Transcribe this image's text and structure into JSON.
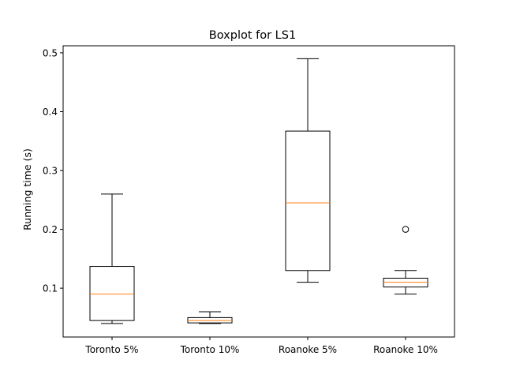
{
  "chart_data": {
    "type": "boxplot",
    "title": "Boxplot for LS1",
    "xlabel": "",
    "ylabel": "Running time (s)",
    "ylim": [
      0.017,
      0.512
    ],
    "yticks": [
      0.1,
      0.2,
      0.3,
      0.4,
      0.5
    ],
    "ytick_labels": [
      "0.1",
      "0.2",
      "0.3",
      "0.4",
      "0.5"
    ],
    "categories": [
      "Toronto 5%",
      "Toronto 10%",
      "Roanoke 5%",
      "Roanoke 10%"
    ],
    "boxes": [
      {
        "whisker_low": 0.04,
        "q1": 0.045,
        "median": 0.09,
        "q3": 0.137,
        "whisker_high": 0.26,
        "fliers": []
      },
      {
        "whisker_low": 0.04,
        "q1": 0.041,
        "median": 0.045,
        "q3": 0.05,
        "whisker_high": 0.06,
        "fliers": []
      },
      {
        "whisker_low": 0.11,
        "q1": 0.13,
        "median": 0.245,
        "q3": 0.367,
        "whisker_high": 0.49,
        "fliers": []
      },
      {
        "whisker_low": 0.09,
        "q1": 0.102,
        "median": 0.11,
        "q3": 0.117,
        "whisker_high": 0.13,
        "fliers": [
          0.2
        ]
      }
    ],
    "colors": {
      "box": "#000000",
      "median": "#ff7f0e",
      "background": "#ffffff"
    },
    "grid": false,
    "legend": "none"
  }
}
